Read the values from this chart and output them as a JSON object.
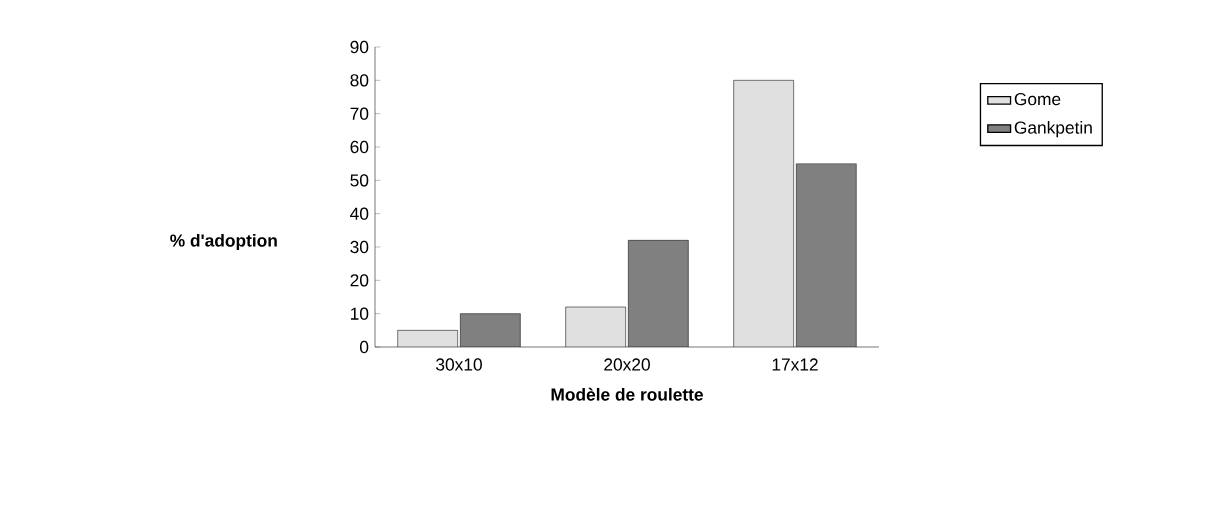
{
  "chart_data": {
    "type": "bar",
    "xlabel": "Modèle de roulette",
    "ylabel": "% d'adoption",
    "categories": [
      "30x10",
      "20x20",
      "17x12"
    ],
    "series": [
      {
        "name": "Gome",
        "color": "#e0e0e0",
        "values": [
          5,
          12,
          80
        ]
      },
      {
        "name": "Gankpetin",
        "color": "#808080",
        "values": [
          10,
          32,
          55
        ]
      }
    ],
    "ylim": [
      0,
      90
    ],
    "yticks": [
      0,
      10,
      20,
      30,
      40,
      50,
      60,
      70,
      80,
      90
    ],
    "legend": "top right",
    "grid": false
  }
}
